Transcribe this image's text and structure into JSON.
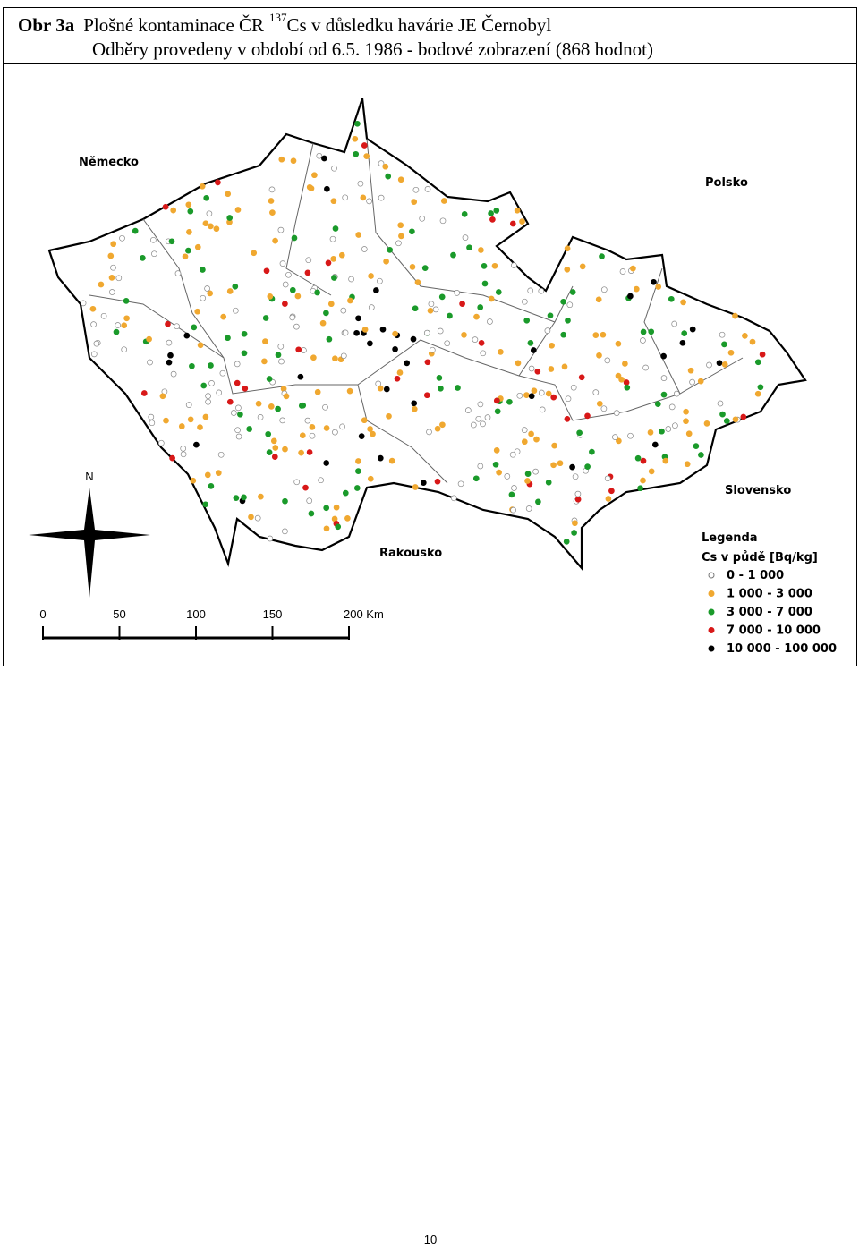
{
  "header": {
    "prefix": "Obr 3a",
    "title": "Plošné kontaminace ČR",
    "superscript": "137",
    "title_rest": "Cs v důsledku havárie JE Černobyl",
    "subtitle": "Odběry provedeny v období od 6.5. 1986 - bodové zobrazení (868 hodnot)"
  },
  "map": {
    "labels": {
      "germany": "Německo",
      "poland": "Polsko",
      "slovakia": "Slovensko",
      "austria": "Rakousko",
      "north": "N"
    },
    "scale": [
      "0",
      "50",
      "100",
      "150",
      "200 Km"
    ],
    "legend": {
      "title": "Legenda",
      "subtitle": "Cs v půdě [Bq/kg]",
      "items": [
        {
          "label": "0 - 1 000",
          "color": "#ffffff"
        },
        {
          "label": "1 000 - 3 000",
          "color": "#f0a830"
        },
        {
          "label": "3 000 - 7 000",
          "color": "#1a9a2a"
        },
        {
          "label": "7 000 - 10 000",
          "color": "#d81818"
        },
        {
          "label": "10 000 - 100 000",
          "color": "#000000"
        }
      ]
    }
  },
  "footer": {
    "page_number": "10"
  }
}
